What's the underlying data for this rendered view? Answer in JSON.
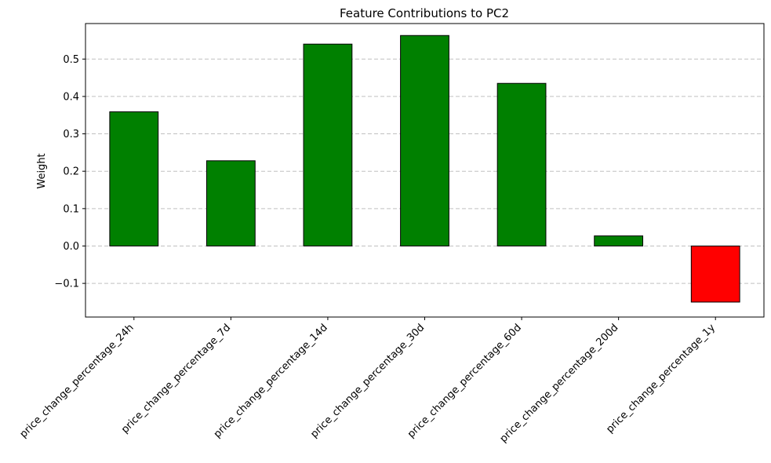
{
  "chart_data": {
    "type": "bar",
    "title": "Feature Contributions to PC2",
    "xlabel": "",
    "ylabel": "Weight",
    "categories": [
      "price_change_percentage_24h",
      "price_change_percentage_7d",
      "price_change_percentage_14d",
      "price_change_percentage_30d",
      "price_change_percentage_60d",
      "price_change_percentage_200d",
      "price_change_percentage_1y"
    ],
    "values": [
      0.359,
      0.228,
      0.54,
      0.563,
      0.435,
      0.027,
      -0.15
    ],
    "ylim": [
      -0.19,
      0.595
    ],
    "yticks": [
      -0.1,
      0.0,
      0.1,
      0.2,
      0.3,
      0.4,
      0.5
    ],
    "ytick_labels": [
      "−0.1",
      "0.0",
      "0.1",
      "0.2",
      "0.3",
      "0.4",
      "0.5"
    ],
    "grid": "y, dashed",
    "colors": {
      "positive": "#008000",
      "negative": "#ff0000",
      "edge": "#000000",
      "grid": "#c0c0c0"
    }
  }
}
